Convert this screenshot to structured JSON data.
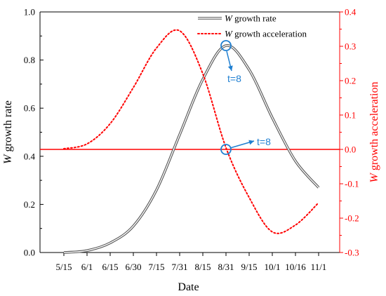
{
  "chart_data": {
    "type": "line",
    "x_unit": "date",
    "categories": [
      "5/15",
      "6/1",
      "6/15",
      "6/30",
      "7/15",
      "7/31",
      "8/15",
      "8/31",
      "9/15",
      "10/1",
      "10/16",
      "11/1"
    ],
    "xlabel": "Date",
    "ylabel_left": {
      "italic": "W",
      "rest": " growth rate"
    },
    "ylabel_right": {
      "italic": "W",
      "rest": " growth acceleration"
    },
    "ylim_left": [
      0.0,
      1.0
    ],
    "ylim_right": [
      -0.3,
      0.4
    ],
    "yticks_left": [
      "0.0",
      "0.2",
      "0.4",
      "0.6",
      "0.8",
      "1.0"
    ],
    "yticks_right": [
      "-0.3",
      "-0.2",
      "-0.1",
      "0.0",
      "0.1",
      "0.2",
      "0.3",
      "0.4"
    ],
    "series": [
      {
        "name": "W growth rate",
        "name_italic": "W",
        "name_rest": " growth rate",
        "axis": "left",
        "style": "double-line",
        "color": "#555555",
        "x": [
          "5/15",
          "6/1",
          "6/15",
          "6/30",
          "7/15",
          "7/31",
          "8/15",
          "8/31",
          "9/15",
          "10/1",
          "10/16",
          "11/1"
        ],
        "values": [
          0.0,
          0.008,
          0.04,
          0.11,
          0.26,
          0.49,
          0.72,
          0.86,
          0.76,
          0.56,
          0.38,
          0.27
        ]
      },
      {
        "name": "W growth acceleration",
        "name_italic": "W",
        "name_rest": " growth acceleration",
        "axis": "right",
        "style": "dotted",
        "color": "#ff0000",
        "x": [
          "5/15",
          "6/1",
          "6/15",
          "6/30",
          "7/15",
          "7/31",
          "8/15",
          "8/31",
          "9/15",
          "10/1",
          "10/16",
          "11/1"
        ],
        "values": [
          0.002,
          0.016,
          0.075,
          0.18,
          0.295,
          0.345,
          0.22,
          0.005,
          -0.14,
          -0.24,
          -0.22,
          -0.155
        ]
      }
    ],
    "reference_line": {
      "axis": "right",
      "value": 0.0,
      "color": "#ff0000"
    },
    "annotations": [
      {
        "label": "t=8",
        "at_x": "8/31",
        "series": "W growth rate",
        "value": 0.86,
        "color": "#1f7fd1"
      },
      {
        "label": "t=8",
        "at_x": "8/31",
        "series": "W growth acceleration",
        "value": 0.0,
        "color": "#1f7fd1"
      }
    ],
    "legend_position": "top-right",
    "grid": false
  }
}
